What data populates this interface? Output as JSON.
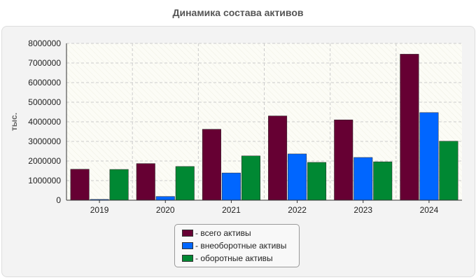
{
  "chart_data": {
    "type": "bar",
    "title": "Динамика состава активов",
    "ylabel": "тыс.",
    "xlabel": "",
    "ylim": [
      0,
      8000000
    ],
    "yticks": [
      0,
      1000000,
      2000000,
      3000000,
      4000000,
      5000000,
      6000000,
      7000000,
      8000000
    ],
    "categories": [
      "2019",
      "2020",
      "2021",
      "2022",
      "2023",
      "2024"
    ],
    "series": [
      {
        "name": "всего активы",
        "color": "#660033",
        "values": [
          1580000,
          1870000,
          3620000,
          4300000,
          4100000,
          7450000
        ]
      },
      {
        "name": "внеоборотные активы",
        "color": "#0066ff",
        "values": [
          40000,
          190000,
          1390000,
          2360000,
          2180000,
          4470000
        ]
      },
      {
        "name": "оборотные активы",
        "color": "#008833",
        "values": [
          1570000,
          1720000,
          2260000,
          1930000,
          1960000,
          3010000
        ]
      }
    ],
    "legend": {
      "position": "bottom-center",
      "prefix": "- "
    },
    "grid": true
  }
}
